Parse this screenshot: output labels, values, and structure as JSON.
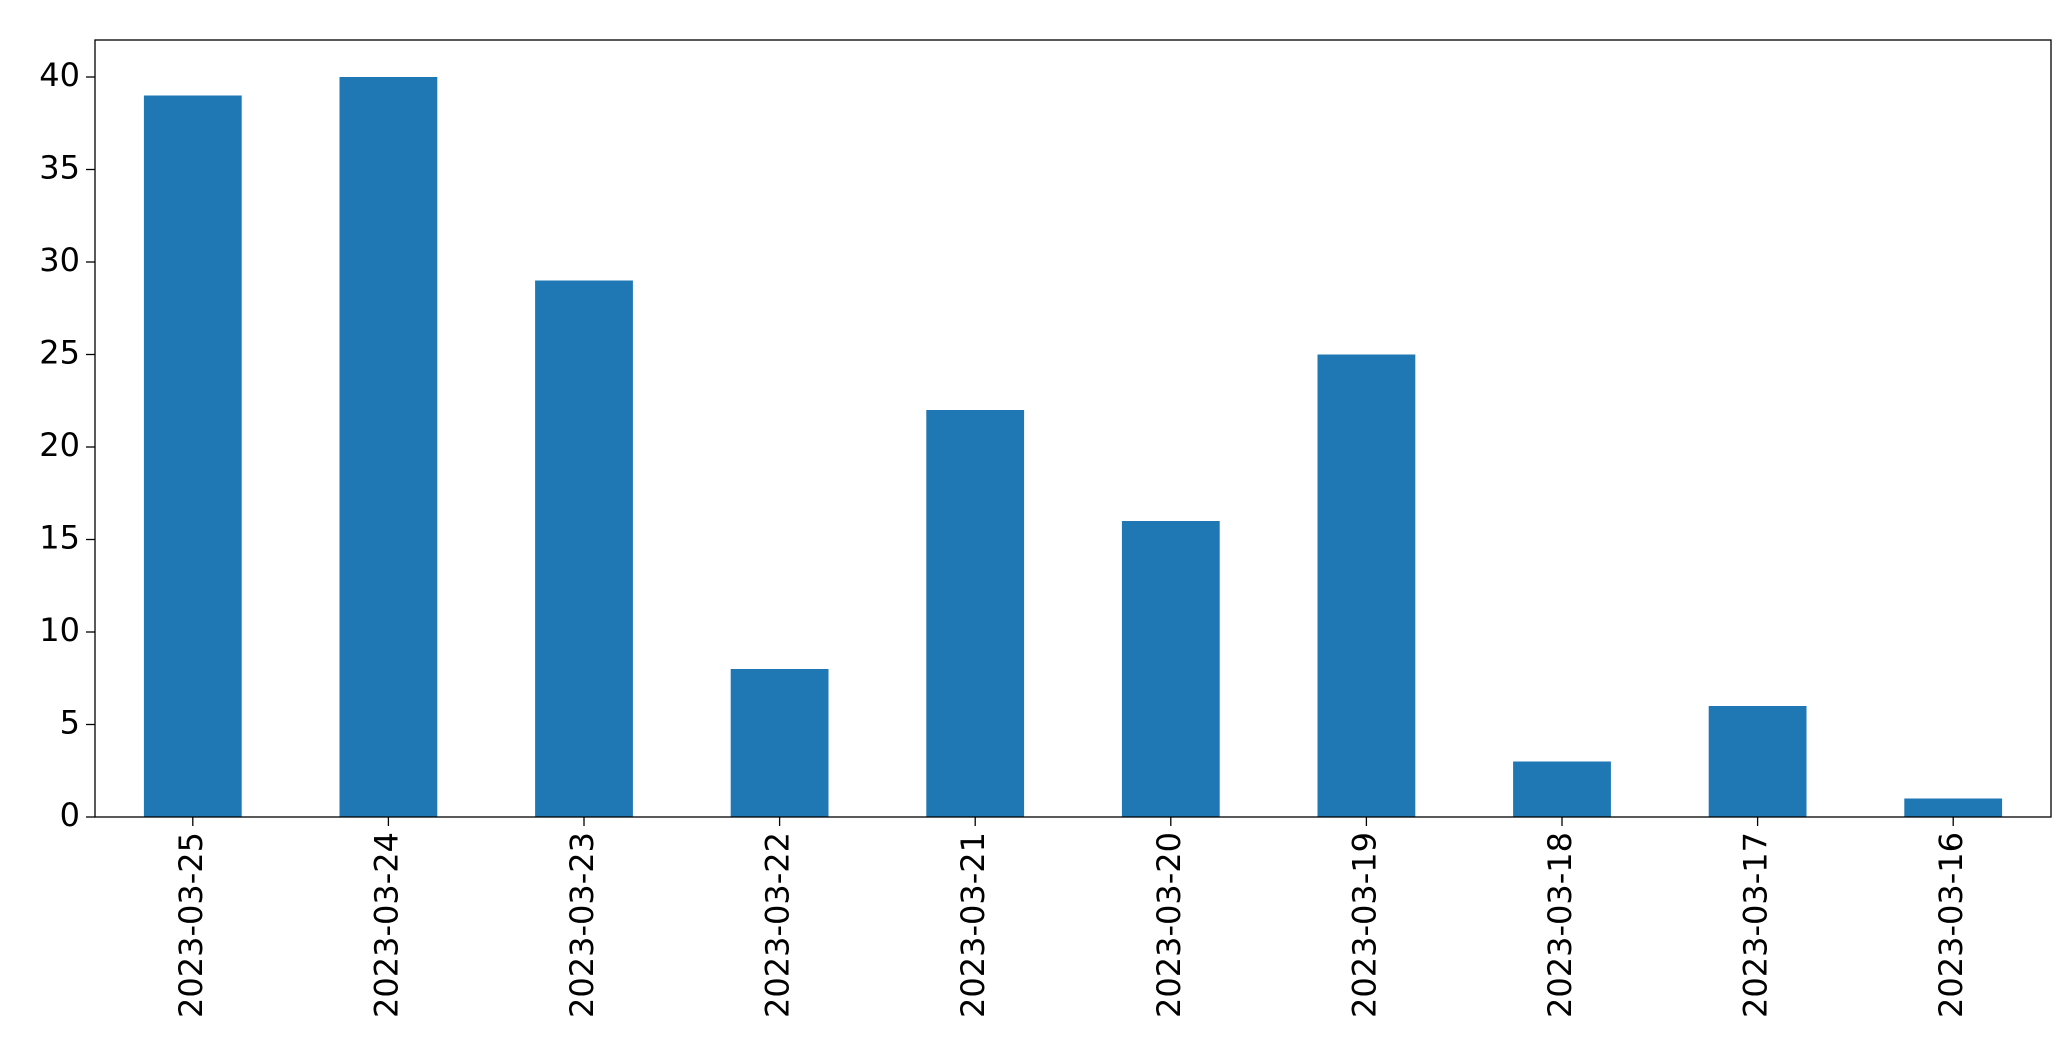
{
  "chart_data": {
    "type": "bar",
    "categories": [
      "2023-03-25",
      "2023-03-24",
      "2023-03-23",
      "2023-03-22",
      "2023-03-21",
      "2023-03-20",
      "2023-03-19",
      "2023-03-18",
      "2023-03-17",
      "2023-03-16"
    ],
    "values": [
      39,
      40,
      29,
      8,
      22,
      16,
      25,
      3,
      6,
      1
    ],
    "color": "#1f77b4",
    "ylim": [
      0,
      42
    ],
    "yticks": [
      0,
      5,
      10,
      15,
      20,
      25,
      30,
      35,
      40
    ],
    "grid": false
  }
}
